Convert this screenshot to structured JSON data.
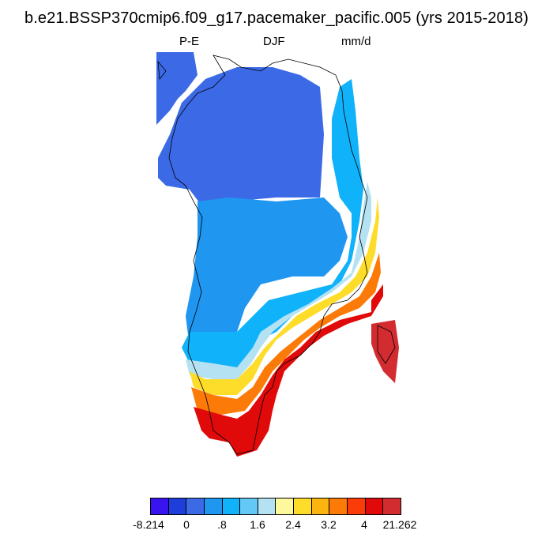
{
  "title": "b.e21.BSSP370cmip6.f09_g17.pacemaker_pacific.005 (yrs 2015-2018)",
  "subtitle": {
    "left": "P-E",
    "center": "DJF",
    "right": "mm/d"
  },
  "colorbar": {
    "colors": [
      "#3a14f0",
      "#1f3dd8",
      "#3c6ae6",
      "#1f96f0",
      "#10b2fa",
      "#64c8f6",
      "#b4e2f2",
      "#fef89c",
      "#fedc2a",
      "#fcb410",
      "#fc7a08",
      "#fc3c08",
      "#e00a0a",
      "#d22c30"
    ],
    "labels": [
      "-8.214",
      "0",
      ".8",
      "1.6",
      "2.4",
      "3.2",
      "4",
      "21.262"
    ]
  },
  "map": {
    "region": "Greenland",
    "variable": "P-E",
    "season": "DJF",
    "units": "mm/d"
  }
}
